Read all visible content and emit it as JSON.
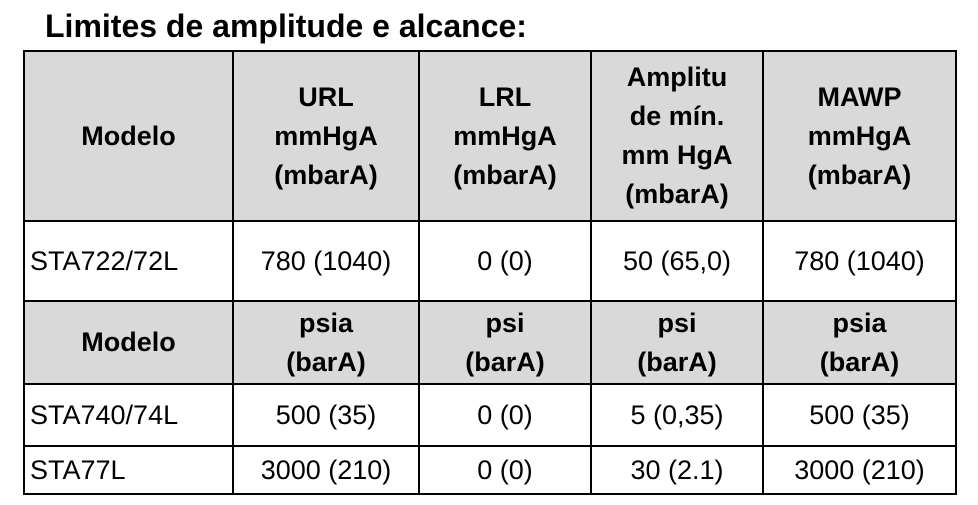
{
  "title": "Limites de amplitude e alcance:",
  "table": {
    "sections": [
      {
        "header": [
          [
            "Modelo"
          ],
          [
            "URL",
            "mmHgA",
            "(mbarA)"
          ],
          [
            "LRL",
            "mmHgA",
            "(mbarA)"
          ],
          [
            "Amplitu",
            "de mín.",
            "mm HgA",
            "(mbarA)"
          ],
          [
            "MAWP",
            "mmHgA",
            "(mbarA)"
          ]
        ],
        "rows": [
          [
            "STA722/72L",
            "780 (1040)",
            "0 (0)",
            "50 (65,0)",
            "780 (1040)"
          ]
        ]
      },
      {
        "header": [
          [
            "Modelo"
          ],
          [
            "psia",
            "(barA)"
          ],
          [
            "psi",
            "(barA)"
          ],
          [
            "psi",
            "(barA)"
          ],
          [
            "psia",
            "(barA)"
          ]
        ],
        "rows": [
          [
            "STA740/74L",
            "500 (35)",
            "0 (0)",
            "5 (0,35)",
            "500 (35)"
          ],
          [
            "STA77L",
            "3000 (210)",
            "0 (0)",
            "30 (2.1)",
            "3000 (210)"
          ]
        ]
      }
    ]
  }
}
